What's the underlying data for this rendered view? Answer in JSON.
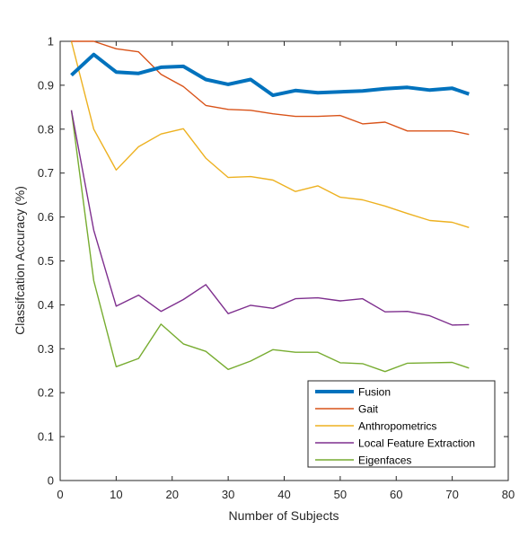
{
  "chart_data": {
    "type": "line",
    "title": "",
    "xlabel": "Number of Subjects",
    "ylabel": "Classifcation Accuracy (%)",
    "xlim": [
      0,
      80
    ],
    "ylim": [
      0,
      1
    ],
    "xticks": [
      0,
      10,
      20,
      30,
      40,
      50,
      60,
      70,
      80
    ],
    "yticks": [
      0,
      0.1,
      0.2,
      0.3,
      0.4,
      0.5,
      0.6,
      0.7,
      0.8,
      0.9,
      1
    ],
    "xtick_labels": [
      "0",
      "10",
      "20",
      "30",
      "40",
      "50",
      "60",
      "70",
      "80"
    ],
    "ytick_labels": [
      "0",
      "0.1",
      "0.2",
      "0.3",
      "0.4",
      "0.5",
      "0.6",
      "0.7",
      "0.8",
      "0.9",
      "1"
    ],
    "grid": false,
    "legend_position": "bottom-right",
    "x": [
      2,
      6,
      10,
      14,
      18,
      22,
      26,
      30,
      34,
      38,
      42,
      46,
      50,
      54,
      58,
      62,
      66,
      70,
      73
    ],
    "series": [
      {
        "name": "Fusion",
        "color": "#0072BD",
        "bold": true,
        "values": [
          0.923,
          0.97,
          0.93,
          0.927,
          0.941,
          0.943,
          0.913,
          0.902,
          0.913,
          0.877,
          0.888,
          0.883,
          0.885,
          0.887,
          0.892,
          0.895,
          0.889,
          0.893,
          0.88
        ]
      },
      {
        "name": "Gait",
        "color": "#D95319",
        "bold": false,
        "values": [
          1.0,
          1.0,
          0.983,
          0.976,
          0.925,
          0.897,
          0.854,
          0.845,
          0.843,
          0.835,
          0.829,
          0.829,
          0.831,
          0.812,
          0.816,
          0.796,
          0.796,
          0.796,
          0.788
        ]
      },
      {
        "name": "Anthropometrics",
        "color": "#EDB120",
        "bold": false,
        "values": [
          1.0,
          0.8,
          0.707,
          0.76,
          0.789,
          0.801,
          0.734,
          0.69,
          0.692,
          0.684,
          0.658,
          0.671,
          0.645,
          0.639,
          0.625,
          0.608,
          0.592,
          0.588,
          0.576
        ]
      },
      {
        "name": "Local Feature Extraction",
        "color": "#7E2F8E",
        "bold": false,
        "values": [
          0.843,
          0.57,
          0.397,
          0.422,
          0.385,
          0.412,
          0.446,
          0.38,
          0.399,
          0.392,
          0.414,
          0.416,
          0.409,
          0.414,
          0.384,
          0.385,
          0.375,
          0.354,
          0.355
        ]
      },
      {
        "name": "Eigenfaces",
        "color": "#77AC30",
        "bold": false,
        "values": [
          0.843,
          0.455,
          0.259,
          0.278,
          0.356,
          0.311,
          0.294,
          0.253,
          0.272,
          0.298,
          0.292,
          0.292,
          0.268,
          0.266,
          0.248,
          0.267,
          0.268,
          0.269,
          0.256
        ]
      }
    ]
  }
}
